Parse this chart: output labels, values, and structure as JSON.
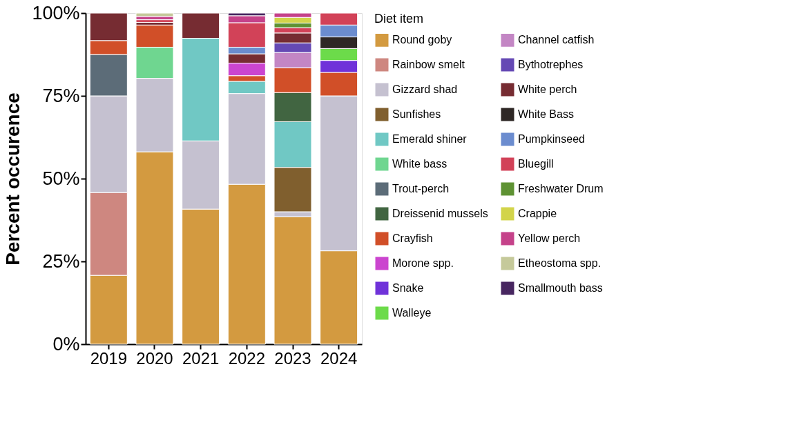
{
  "chart_data": {
    "type": "bar",
    "stacked": true,
    "ylabel": "Percent occurence",
    "legend_title": "Diet item",
    "legend": "right",
    "grid": false,
    "categories": [
      "2019",
      "2020",
      "2021",
      "2022",
      "2023",
      "2024"
    ],
    "ylim": [
      0,
      100
    ],
    "yticks": [
      {
        "value": 0,
        "label": "0%"
      },
      {
        "value": 25,
        "label": "25%"
      },
      {
        "value": 50,
        "label": "50%"
      },
      {
        "value": 75,
        "label": "75%"
      },
      {
        "value": 100,
        "label": "100%"
      }
    ],
    "series": [
      {
        "name": "Round goby",
        "color": "#d39a40",
        "values": [
          20.8,
          58.1,
          40.8,
          48.3,
          38.5,
          28.2
        ]
      },
      {
        "name": "Rainbow smelt",
        "color": "#ce8780",
        "values": [
          25.0,
          null,
          null,
          null,
          null,
          null
        ]
      },
      {
        "name": "Gizzard shad",
        "color": "#c5c1d0",
        "values": [
          29.2,
          22.2,
          20.6,
          27.4,
          1.5,
          46.8
        ]
      },
      {
        "name": "Sunfishes",
        "color": "#805f2e",
        "values": [
          null,
          null,
          null,
          null,
          13.4,
          null
        ]
      },
      {
        "name": "Emerald shiner",
        "color": "#70c8c4",
        "values": [
          null,
          null,
          31.0,
          3.7,
          13.8,
          null
        ]
      },
      {
        "name": "White bass",
        "color": "#6fd690",
        "values": [
          null,
          9.4,
          null,
          null,
          null,
          null
        ]
      },
      {
        "name": "Trout-perch",
        "color": "#5c6c78",
        "values": [
          12.5,
          null,
          null,
          null,
          null,
          null
        ]
      },
      {
        "name": "Dreissenid mussels",
        "color": "#416541",
        "values": [
          null,
          null,
          null,
          null,
          8.8,
          null
        ]
      },
      {
        "name": "Crayfish",
        "color": "#d14f28",
        "values": [
          4.2,
          6.7,
          null,
          1.7,
          7.5,
          7.1
        ]
      },
      {
        "name": "Morone spp.",
        "color": "#cb45cf",
        "values": [
          null,
          null,
          null,
          3.8,
          null,
          null
        ]
      },
      {
        "name": "Snake",
        "color": "#6f32d9",
        "values": [
          null,
          null,
          null,
          null,
          null,
          3.6
        ]
      },
      {
        "name": "Walleye",
        "color": "#6cdb4a",
        "values": [
          null,
          null,
          null,
          null,
          null,
          3.6
        ]
      },
      {
        "name": "Channel catfish",
        "color": "#c386c4",
        "values": [
          null,
          null,
          null,
          null,
          4.6,
          null
        ]
      },
      {
        "name": "Bythotrephes",
        "color": "#6549b4",
        "values": [
          null,
          null,
          null,
          null,
          2.9,
          null
        ]
      },
      {
        "name": "White perch",
        "color": "#762c32",
        "values": [
          8.3,
          0.8,
          7.6,
          2.8,
          3.0,
          null
        ]
      },
      {
        "name": "White Bass",
        "color": "#2e2725",
        "values": [
          null,
          null,
          null,
          null,
          null,
          3.5
        ]
      },
      {
        "name": "Pumpkinseed",
        "color": "#6b8ccf",
        "values": [
          null,
          null,
          null,
          2.0,
          null,
          3.6
        ]
      },
      {
        "name": "Bluegill",
        "color": "#d24258",
        "values": [
          null,
          0.8,
          null,
          7.4,
          1.6,
          3.6
        ]
      },
      {
        "name": "Freshwater Drum",
        "color": "#5e9233",
        "values": [
          null,
          null,
          null,
          null,
          1.4,
          null
        ]
      },
      {
        "name": "Crappie",
        "color": "#d2d44a",
        "values": [
          null,
          null,
          null,
          null,
          1.7,
          null
        ]
      },
      {
        "name": "Yellow perch",
        "color": "#c5428a",
        "values": [
          null,
          1.0,
          null,
          2.1,
          1.3,
          null
        ]
      },
      {
        "name": "Etheostoma spp.",
        "color": "#c5c99a",
        "values": [
          null,
          1.0,
          null,
          null,
          null,
          null
        ]
      },
      {
        "name": "Smallmouth bass",
        "color": "#472660",
        "values": [
          null,
          null,
          null,
          0.8,
          null,
          null
        ]
      }
    ]
  }
}
